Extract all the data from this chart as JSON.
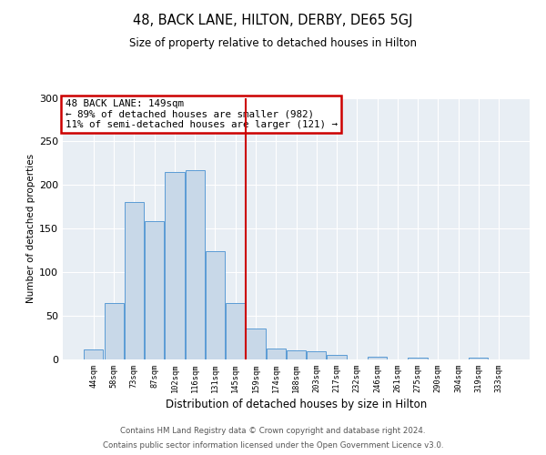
{
  "title": "48, BACK LANE, HILTON, DERBY, DE65 5GJ",
  "subtitle": "Size of property relative to detached houses in Hilton",
  "xlabel": "Distribution of detached houses by size in Hilton",
  "ylabel": "Number of detached properties",
  "footer_lines": [
    "Contains HM Land Registry data © Crown copyright and database right 2024.",
    "Contains public sector information licensed under the Open Government Licence v3.0."
  ],
  "bar_labels": [
    "44sqm",
    "58sqm",
    "73sqm",
    "87sqm",
    "102sqm",
    "116sqm",
    "131sqm",
    "145sqm",
    "159sqm",
    "174sqm",
    "188sqm",
    "203sqm",
    "217sqm",
    "232sqm",
    "246sqm",
    "261sqm",
    "275sqm",
    "290sqm",
    "304sqm",
    "319sqm",
    "333sqm"
  ],
  "bar_values": [
    12,
    65,
    181,
    159,
    215,
    217,
    124,
    65,
    35,
    13,
    10,
    9,
    5,
    0,
    3,
    0,
    2,
    0,
    0,
    2,
    0
  ],
  "bar_color": "#c8d8e8",
  "bar_edge_color": "#5b9bd5",
  "vline_color": "#cc0000",
  "annotation_text": "48 BACK LANE: 149sqm\n← 89% of detached houses are smaller (982)\n11% of semi-detached houses are larger (121) →",
  "annotation_box_color": "#cc0000",
  "ylim": [
    0,
    300
  ],
  "yticks": [
    0,
    50,
    100,
    150,
    200,
    250,
    300
  ],
  "fig_bg_color": "#ffffff",
  "plot_bg_color": "#e8eef4",
  "grid_color": "#ffffff"
}
